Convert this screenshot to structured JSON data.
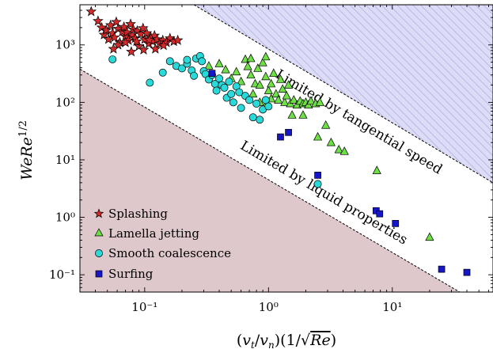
{
  "chart_data": {
    "type": "scatter",
    "x_scale": "log",
    "y_scale": "log",
    "xlim": [
      0.03,
      65
    ],
    "ylim": [
      0.05,
      5000
    ],
    "xlabel": "(v_t/v_n)(1/√Re)",
    "ylabel": "WeRe^{1/2}",
    "x_ticks": [
      {
        "value": 0.1,
        "label": "10⁻¹"
      },
      {
        "value": 1,
        "label": "10⁰"
      },
      {
        "value": 10,
        "label": "10¹"
      }
    ],
    "y_ticks": [
      {
        "value": 0.1,
        "label": "10⁻¹"
      },
      {
        "value": 1,
        "label": "10⁰"
      },
      {
        "value": 10,
        "label": "10¹"
      },
      {
        "value": 100,
        "label": "10²"
      },
      {
        "value": 1000,
        "label": "10³"
      }
    ],
    "regions": [
      {
        "label": "Limited by liquid properties",
        "color": "#dec8cb",
        "boundary": [
          [
            0.03,
            380
          ],
          [
            35,
            0.05
          ]
        ]
      },
      {
        "label": "Limited by tangential speed",
        "color": "#dcdcf7",
        "hatch_color": "#a8a6dc",
        "boundary": [
          [
            0.25,
            5000
          ],
          [
            65,
            4
          ]
        ]
      }
    ],
    "legend": {
      "position": "lower-left"
    },
    "series": [
      {
        "name": "Splashing",
        "marker": "star",
        "color": "#d42a2a",
        "points": [
          [
            0.037,
            3800
          ],
          [
            0.042,
            2600
          ],
          [
            0.045,
            2000
          ],
          [
            0.047,
            1500
          ],
          [
            0.049,
            1800
          ],
          [
            0.051,
            1250
          ],
          [
            0.053,
            2200
          ],
          [
            0.055,
            1600
          ],
          [
            0.057,
            1350
          ],
          [
            0.059,
            2500
          ],
          [
            0.061,
            1900
          ],
          [
            0.063,
            1100
          ],
          [
            0.066,
            1700
          ],
          [
            0.068,
            2050
          ],
          [
            0.07,
            1400
          ],
          [
            0.072,
            1650
          ],
          [
            0.074,
            1200
          ],
          [
            0.077,
            2300
          ],
          [
            0.079,
            1500
          ],
          [
            0.081,
            1850
          ],
          [
            0.084,
            1300
          ],
          [
            0.087,
            1750
          ],
          [
            0.09,
            950
          ],
          [
            0.093,
            1550
          ],
          [
            0.097,
            1950
          ],
          [
            0.1,
            1250
          ],
          [
            0.104,
            1600
          ],
          [
            0.108,
            1050
          ],
          [
            0.112,
            1350
          ],
          [
            0.116,
            1150
          ],
          [
            0.12,
            1450
          ],
          [
            0.126,
            1250
          ],
          [
            0.132,
            1050
          ],
          [
            0.14,
            1200
          ],
          [
            0.15,
            1100
          ],
          [
            0.16,
            1300
          ],
          [
            0.172,
            1150
          ],
          [
            0.185,
            1200
          ],
          [
            0.061,
            1000
          ],
          [
            0.07,
            1100
          ],
          [
            0.086,
            1150
          ],
          [
            0.109,
            1220
          ],
          [
            0.122,
            850
          ],
          [
            0.142,
            980
          ],
          [
            0.056,
            850
          ],
          [
            0.078,
            760
          ],
          [
            0.098,
            820
          ]
        ]
      },
      {
        "name": "Lamella jetting",
        "marker": "triangle",
        "color": "#6ee046",
        "points": [
          [
            0.33,
            430
          ],
          [
            0.4,
            470
          ],
          [
            0.45,
            370
          ],
          [
            0.5,
            260
          ],
          [
            0.55,
            340
          ],
          [
            0.6,
            230
          ],
          [
            0.65,
            560
          ],
          [
            0.68,
            420
          ],
          [
            0.72,
            300
          ],
          [
            0.78,
            210
          ],
          [
            0.82,
            390
          ],
          [
            0.85,
            200
          ],
          [
            0.9,
            490
          ],
          [
            0.95,
            280
          ],
          [
            1.0,
            160
          ],
          [
            1.05,
            210
          ],
          [
            1.1,
            320
          ],
          [
            1.15,
            140
          ],
          [
            1.2,
            110
          ],
          [
            1.3,
            170
          ],
          [
            1.35,
            100
          ],
          [
            1.4,
            130
          ],
          [
            1.5,
            95
          ],
          [
            1.6,
            110
          ],
          [
            1.7,
            90
          ],
          [
            1.8,
            105
          ],
          [
            1.9,
            95
          ],
          [
            2.0,
            100
          ],
          [
            2.1,
            90
          ],
          [
            2.2,
            105
          ],
          [
            2.4,
            95
          ],
          [
            2.6,
            100
          ],
          [
            0.75,
            140
          ],
          [
            0.85,
            100
          ],
          [
            0.95,
            88
          ],
          [
            1.05,
            115
          ],
          [
            1.25,
            250
          ],
          [
            1.45,
            200
          ],
          [
            1.55,
            60
          ],
          [
            1.9,
            60
          ],
          [
            2.5,
            25
          ],
          [
            2.9,
            40
          ],
          [
            3.2,
            20
          ],
          [
            3.7,
            15
          ],
          [
            4.1,
            14
          ],
          [
            7.5,
            6.5
          ],
          [
            20,
            0.45
          ],
          [
            0.72,
            580
          ],
          [
            0.95,
            620
          ]
        ]
      },
      {
        "name": "Smooth coalescence",
        "marker": "circle",
        "color": "#2ad9d9",
        "points": [
          [
            0.055,
            560
          ],
          [
            0.11,
            220
          ],
          [
            0.14,
            330
          ],
          [
            0.16,
            520
          ],
          [
            0.18,
            430
          ],
          [
            0.2,
            390
          ],
          [
            0.22,
            470
          ],
          [
            0.24,
            360
          ],
          [
            0.26,
            580
          ],
          [
            0.28,
            640
          ],
          [
            0.3,
            350
          ],
          [
            0.31,
            310
          ],
          [
            0.33,
            250
          ],
          [
            0.35,
            300
          ],
          [
            0.37,
            210
          ],
          [
            0.38,
            160
          ],
          [
            0.4,
            260
          ],
          [
            0.42,
            200
          ],
          [
            0.44,
            180
          ],
          [
            0.46,
            120
          ],
          [
            0.48,
            230
          ],
          [
            0.5,
            140
          ],
          [
            0.52,
            100
          ],
          [
            0.55,
            190
          ],
          [
            0.58,
            150
          ],
          [
            0.6,
            80
          ],
          [
            0.65,
            130
          ],
          [
            0.7,
            110
          ],
          [
            0.75,
            55
          ],
          [
            0.8,
            95
          ],
          [
            0.85,
            50
          ],
          [
            0.9,
            75
          ],
          [
            0.95,
            110
          ],
          [
            1.0,
            85
          ],
          [
            2.5,
            3.8
          ],
          [
            0.22,
            550
          ],
          [
            0.29,
            520
          ],
          [
            0.25,
            290
          ]
        ]
      },
      {
        "name": "Surfing",
        "marker": "square",
        "color": "#1616c8",
        "points": [
          [
            0.35,
            320
          ],
          [
            1.25,
            25
          ],
          [
            1.45,
            30
          ],
          [
            2.5,
            5.4
          ],
          [
            7.4,
            1.3
          ],
          [
            7.9,
            1.15
          ],
          [
            10.6,
            0.78
          ],
          [
            25,
            0.125
          ],
          [
            40,
            0.11
          ]
        ]
      }
    ]
  }
}
